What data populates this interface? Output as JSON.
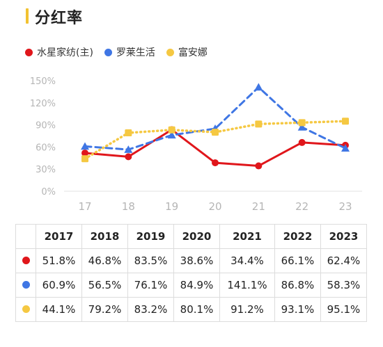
{
  "title": "分红率",
  "colors": {
    "s1": "#e0161b",
    "s2": "#3f76e4",
    "s3": "#f5c842",
    "accent": "#f2c231"
  },
  "legend": [
    {
      "label": "水星家纺(主)",
      "color": "#e0161b"
    },
    {
      "label": "罗莱生活",
      "color": "#3f76e4"
    },
    {
      "label": "富安娜",
      "color": "#f5c842"
    }
  ],
  "chart_data": {
    "type": "line",
    "x": [
      "17",
      "18",
      "19",
      "20",
      "21",
      "22",
      "23"
    ],
    "ylim": [
      0,
      150
    ],
    "yticks": [
      "0%",
      "30%",
      "60%",
      "90%",
      "120%",
      "150%"
    ],
    "grid": false,
    "legend_position": "top-left",
    "series": [
      {
        "name": "水星家纺(主)",
        "color": "#e0161b",
        "style": "solid",
        "marker": "circle",
        "values": [
          51.8,
          46.8,
          83.5,
          38.6,
          34.4,
          66.1,
          62.4
        ]
      },
      {
        "name": "罗莱生活",
        "color": "#3f76e4",
        "style": "dashed",
        "marker": "triangle",
        "values": [
          60.9,
          56.5,
          76.1,
          84.9,
          141.1,
          86.8,
          58.3
        ]
      },
      {
        "name": "富安娜",
        "color": "#f5c842",
        "style": "dotted",
        "marker": "square",
        "values": [
          44.1,
          79.2,
          83.2,
          80.1,
          91.2,
          93.1,
          95.1
        ]
      }
    ]
  },
  "table": {
    "headers": [
      "",
      "2017",
      "2018",
      "2019",
      "2020",
      "2021",
      "2022",
      "2023"
    ],
    "rows": [
      {
        "color": "#e0161b",
        "cells": [
          "51.8%",
          "46.8%",
          "83.5%",
          "38.6%",
          "34.4%",
          "66.1%",
          "62.4%"
        ]
      },
      {
        "color": "#3f76e4",
        "cells": [
          "60.9%",
          "56.5%",
          "76.1%",
          "84.9%",
          "141.1%",
          "86.8%",
          "58.3%"
        ]
      },
      {
        "color": "#f5c842",
        "cells": [
          "44.1%",
          "79.2%",
          "83.2%",
          "80.1%",
          "91.2%",
          "93.1%",
          "95.1%"
        ]
      }
    ]
  }
}
